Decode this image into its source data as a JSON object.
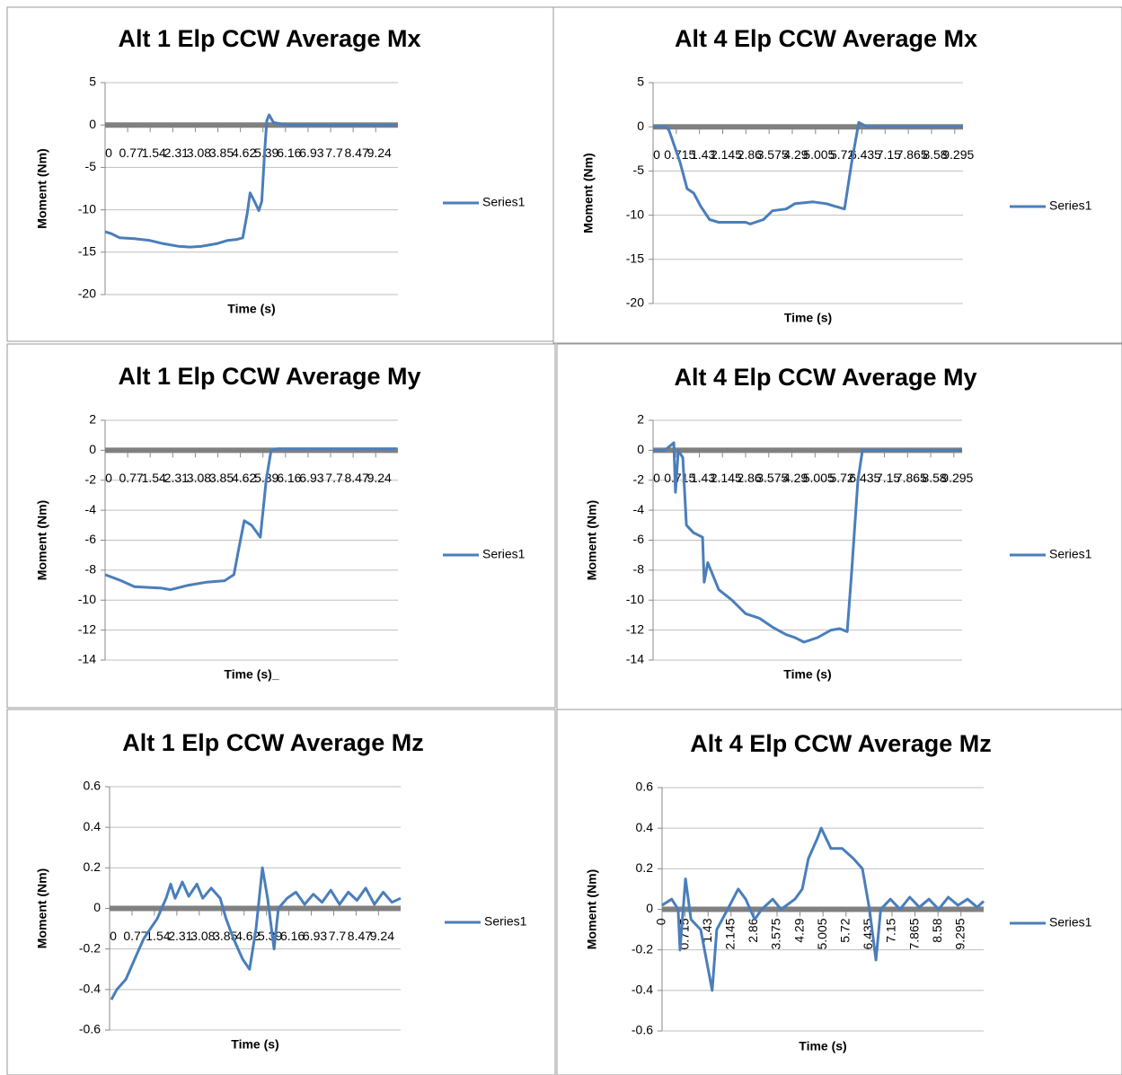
{
  "chart_data": [
    {
      "type": "line",
      "title": "Alt 1 Elp CCW  Average Mx",
      "x_label": "Time (s)",
      "y_label": "Moment (Nm)",
      "xlim": [
        0,
        10
      ],
      "xticks": [
        0,
        0.77,
        1.54,
        2.31,
        3.08,
        3.85,
        4.62,
        5.39,
        6.16,
        6.93,
        7.7,
        8.47,
        9.24
      ],
      "ylim": [
        -20,
        5
      ],
      "yticks": [
        -20,
        -15,
        -10,
        -5,
        0,
        5
      ],
      "grid": true,
      "legend": "right",
      "x": [
        0,
        0.2,
        0.5,
        1,
        1.5,
        2,
        2.5,
        2.9,
        3.3,
        3.8,
        4.2,
        4.5,
        4.7,
        4.85,
        4.95,
        5.1,
        5.25,
        5.35,
        5.45,
        5.52,
        5.6,
        5.75,
        6.2,
        7,
        8,
        9,
        9.95
      ],
      "series": [
        {
          "name": "Series1",
          "color": "#4a7ebb",
          "values": [
            -12.6,
            -12.8,
            -13.3,
            -13.4,
            -13.6,
            -14.0,
            -14.3,
            -14.4,
            -14.3,
            -14.0,
            -13.6,
            -13.5,
            -13.3,
            -10.5,
            -8.0,
            -9.0,
            -10.1,
            -9.0,
            -3,
            0.5,
            1.2,
            0.3,
            0,
            0,
            0,
            0,
            0
          ]
        }
      ]
    },
    {
      "type": "line",
      "title": "Alt 4 Elp CCW Average Mx",
      "x_label": "Time (s)",
      "y_label": "Moment (Nm)",
      "xlim": [
        0,
        9.55
      ],
      "xticks": [
        0,
        0.715,
        1.43,
        2.145,
        2.86,
        3.575,
        4.29,
        5.005,
        5.72,
        6.435,
        7.15,
        7.865,
        8.58,
        9.295
      ],
      "ylim": [
        -20,
        5
      ],
      "yticks": [
        -20,
        -15,
        -10,
        -5,
        0,
        5
      ],
      "grid": true,
      "legend": "right",
      "x": [
        0,
        0.42,
        0.5,
        0.69,
        0.83,
        1.05,
        1.25,
        1.47,
        1.74,
        2.02,
        2.85,
        2.99,
        3.4,
        3.68,
        4.1,
        4.37,
        4.93,
        5.34,
        5.62,
        5.9,
        6.12,
        6.34,
        6.59,
        7.56,
        9.55
      ],
      "series": [
        {
          "name": "Series1",
          "color": "#4a7ebb",
          "values": [
            0,
            0,
            -0.5,
            -2.5,
            -4,
            -7,
            -7.5,
            -9,
            -10.5,
            -10.8,
            -10.8,
            -11,
            -10.5,
            -9.5,
            -9.3,
            -8.7,
            -8.5,
            -8.7,
            -9,
            -9.3,
            -4,
            0.5,
            0,
            0,
            0
          ]
        }
      ]
    },
    {
      "type": "line",
      "title": "Alt 1 Elp CCW  Average My",
      "x_label": "Time (s)_",
      "y_label": "Moment (Nm)",
      "xlim": [
        0,
        10
      ],
      "xticks": [
        0,
        0.77,
        1.54,
        2.31,
        3.08,
        3.85,
        4.62,
        5.39,
        6.16,
        6.93,
        7.7,
        8.47,
        9.24
      ],
      "ylim": [
        -14,
        2
      ],
      "yticks": [
        -14,
        -12,
        -10,
        -8,
        -6,
        -4,
        -2,
        0,
        2
      ],
      "grid": true,
      "legend": "right",
      "x": [
        0,
        0.55,
        1.0,
        1.93,
        2.24,
        2.85,
        3.47,
        4.08,
        4.4,
        4.57,
        4.75,
        5.0,
        5.3,
        5.5,
        5.67,
        5.9,
        7,
        8,
        9,
        9.95
      ],
      "series": [
        {
          "name": "Series1",
          "color": "#4a7ebb",
          "values": [
            -8.3,
            -8.7,
            -9.1,
            -9.2,
            -9.3,
            -9.0,
            -8.8,
            -8.7,
            -8.3,
            -6.5,
            -4.7,
            -5.0,
            -5.8,
            -2,
            0,
            0.1,
            0.1,
            0.1,
            0.1,
            0.1
          ]
        }
      ]
    },
    {
      "type": "line",
      "title": "Alt 4 Elp CCW Average My",
      "x_label": "Time (s)",
      "y_label": "Moment (Nm)",
      "xlim": [
        0,
        9.55
      ],
      "xticks": [
        0,
        0.715,
        1.43,
        2.145,
        2.86,
        3.575,
        4.29,
        5.005,
        5.72,
        6.435,
        7.15,
        7.865,
        8.58,
        9.295
      ],
      "ylim": [
        -14,
        2
      ],
      "yticks": [
        -14,
        -12,
        -10,
        -8,
        -6,
        -4,
        -2,
        0,
        2
      ],
      "grid": true,
      "legend": "right",
      "x": [
        0,
        0.36,
        0.64,
        0.69,
        0.78,
        0.92,
        1.03,
        1.25,
        1.53,
        1.58,
        1.69,
        2.03,
        2.44,
        2.86,
        3.28,
        3.69,
        4.11,
        4.39,
        4.66,
        5.08,
        5.5,
        5.77,
        6.0,
        6.14,
        6.33,
        6.47,
        7.58,
        9.55
      ],
      "series": [
        {
          "name": "Series1",
          "color": "#4a7ebb",
          "values": [
            0,
            0,
            0.5,
            -2.8,
            0,
            -0.5,
            -5,
            -5.5,
            -5.8,
            -8.8,
            -7.5,
            -9.3,
            -10,
            -10.9,
            -11.2,
            -11.8,
            -12.3,
            -12.5,
            -12.8,
            -12.5,
            -12.0,
            -11.9,
            -12.1,
            -8,
            -2,
            0,
            0,
            0
          ]
        }
      ]
    },
    {
      "type": "line",
      "title": "Alt 1 Elp CCW  Average Mz",
      "x_label": "Time (s)",
      "y_label": "Moment (Nm)",
      "xlim": [
        0,
        10
      ],
      "xticks": [
        0,
        0.77,
        1.54,
        2.31,
        3.08,
        3.85,
        4.62,
        5.39,
        6.16,
        6.93,
        7.7,
        8.47,
        9.24
      ],
      "ylim": [
        -0.6,
        0.6
      ],
      "yticks": [
        -0.6,
        -0.4,
        -0.2,
        0,
        0.2,
        0.4,
        0.6
      ],
      "grid": true,
      "legend": "right",
      "x": [
        0.06,
        0.25,
        0.56,
        0.86,
        1.17,
        1.4,
        1.64,
        1.94,
        2.1,
        2.25,
        2.5,
        2.72,
        3.0,
        3.2,
        3.49,
        3.8,
        4.0,
        4.26,
        4.57,
        4.81,
        5.03,
        5.25,
        5.43,
        5.65,
        5.8,
        6.1,
        6.4,
        6.7,
        7.0,
        7.3,
        7.6,
        7.9,
        8.2,
        8.5,
        8.8,
        9.1,
        9.4,
        9.7,
        10
      ],
      "series": [
        {
          "name": "Series1",
          "color": "#4a7ebb",
          "values": [
            -0.45,
            -0.4,
            -0.35,
            -0.25,
            -0.15,
            -0.1,
            -0.05,
            0.05,
            0.12,
            0.05,
            0.13,
            0.06,
            0.12,
            0.05,
            0.1,
            0.05,
            -0.05,
            -0.15,
            -0.25,
            -0.3,
            -0.1,
            0.2,
            0.05,
            -0.2,
            0.0,
            0.05,
            0.08,
            0.02,
            0.07,
            0.03,
            0.09,
            0.02,
            0.08,
            0.04,
            0.1,
            0.02,
            0.08,
            0.03,
            0.05
          ]
        }
      ]
    },
    {
      "type": "line",
      "title": "Alt 4 Elp CCW Average Mz",
      "x_label": "Time (s)",
      "y_label": "Moment (Nm)",
      "xlim": [
        0,
        10
      ],
      "xticks": [
        0,
        0.715,
        1.43,
        2.145,
        2.86,
        3.575,
        4.29,
        5.005,
        5.72,
        6.435,
        7.15,
        7.865,
        8.58,
        9.295
      ],
      "ylim": [
        -0.6,
        0.6
      ],
      "yticks": [
        -0.6,
        -0.4,
        -0.2,
        0,
        0.2,
        0.4,
        0.6
      ],
      "grid": true,
      "legend": "right",
      "x": [
        0,
        0.3,
        0.5,
        0.56,
        0.73,
        0.9,
        1.2,
        1.56,
        1.7,
        2.04,
        2.37,
        2.6,
        2.88,
        3.1,
        3.44,
        3.7,
        4.13,
        4.36,
        4.55,
        4.83,
        4.95,
        5.25,
        5.6,
        5.95,
        6.23,
        6.45,
        6.65,
        6.8,
        7.1,
        7.4,
        7.7,
        8.0,
        8.3,
        8.6,
        8.9,
        9.2,
        9.5,
        9.8,
        10
      ],
      "series": [
        {
          "name": "Series1",
          "color": "#4a7ebb",
          "values": [
            0.02,
            0.05,
            0.0,
            -0.2,
            0.15,
            -0.05,
            -0.1,
            -0.4,
            -0.1,
            0.0,
            0.1,
            0.05,
            -0.05,
            0.0,
            0.05,
            0.0,
            0.05,
            0.1,
            0.25,
            0.35,
            0.4,
            0.3,
            0.3,
            0.25,
            0.2,
            0.0,
            -0.25,
            0.0,
            0.05,
            0.0,
            0.06,
            0.01,
            0.05,
            0.0,
            0.06,
            0.02,
            0.05,
            0.01,
            0.04
          ]
        }
      ]
    }
  ]
}
